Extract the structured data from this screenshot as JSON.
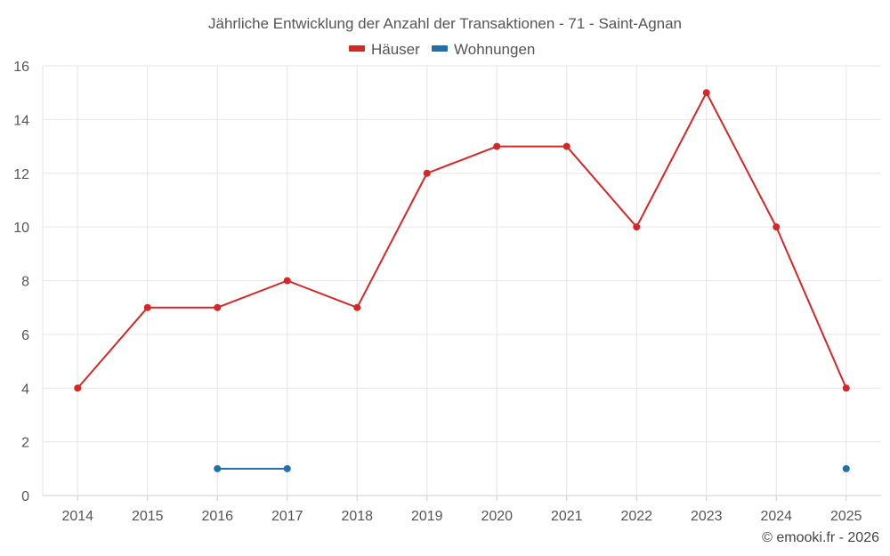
{
  "chart_data": {
    "type": "line",
    "title": "Jährliche Entwicklung der Anzahl der Transaktionen - 71 - Saint-Agnan",
    "x": [
      "2014",
      "2015",
      "2016",
      "2017",
      "2018",
      "2019",
      "2020",
      "2021",
      "2022",
      "2023",
      "2024",
      "2025"
    ],
    "ylim": [
      0,
      16
    ],
    "yticks": [
      0,
      2,
      4,
      6,
      8,
      10,
      12,
      14,
      16
    ],
    "grid": true,
    "legend_position": "top-center",
    "series": [
      {
        "name": "Häuser",
        "color": "#d62728",
        "values": [
          4,
          7,
          7,
          8,
          7,
          12,
          13,
          13,
          10,
          15,
          10,
          4
        ]
      },
      {
        "name": "Wohnungen",
        "color": "#1f6fa8",
        "values": [
          null,
          null,
          1,
          1,
          null,
          null,
          null,
          null,
          null,
          null,
          null,
          1
        ]
      }
    ],
    "credit": "© emooki.fr - 2026"
  }
}
